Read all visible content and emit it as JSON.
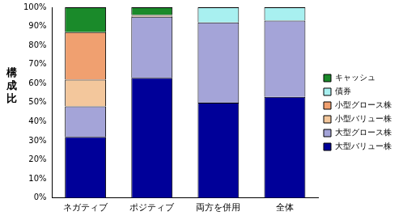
{
  "chart_data": {
    "type": "bar",
    "stacked": true,
    "y_label": "構成比",
    "categories": [
      "ネガティブ",
      "ポジティブ",
      "両方を併用",
      "全体"
    ],
    "series": [
      {
        "name": "大型バリュー株",
        "color": "#000099",
        "values": [
          32,
          63,
          50,
          53
        ]
      },
      {
        "name": "大型グロース株",
        "color": "#a4a4d8",
        "values": [
          16,
          32,
          42,
          40
        ]
      },
      {
        "name": "小型バリュー株",
        "color": "#f3c79c",
        "values": [
          14,
          0.5,
          0,
          0
        ]
      },
      {
        "name": "小型グロース株",
        "color": "#f0a070",
        "values": [
          25,
          0.5,
          0,
          0
        ]
      },
      {
        "name": "債券",
        "color": "#a8f0f0",
        "values": [
          0,
          0,
          8,
          7
        ]
      },
      {
        "name": "キャッシュ",
        "color": "#1a8a2a",
        "values": [
          13,
          4,
          0,
          0
        ]
      }
    ],
    "ylim": [
      0,
      100
    ],
    "yticks": [
      {
        "value": 0,
        "label": "0%"
      },
      {
        "value": 10,
        "label": "10%"
      },
      {
        "value": 20,
        "label": "20%"
      },
      {
        "value": 30,
        "label": "30%"
      },
      {
        "value": 40,
        "label": "40%"
      },
      {
        "value": 50,
        "label": "50%"
      },
      {
        "value": 60,
        "label": "60%"
      },
      {
        "value": 70,
        "label": "70%"
      },
      {
        "value": 80,
        "label": "80%"
      },
      {
        "value": 90,
        "label": "90%"
      },
      {
        "value": 100,
        "label": "100%"
      }
    ],
    "grid": false,
    "legend": "right"
  }
}
